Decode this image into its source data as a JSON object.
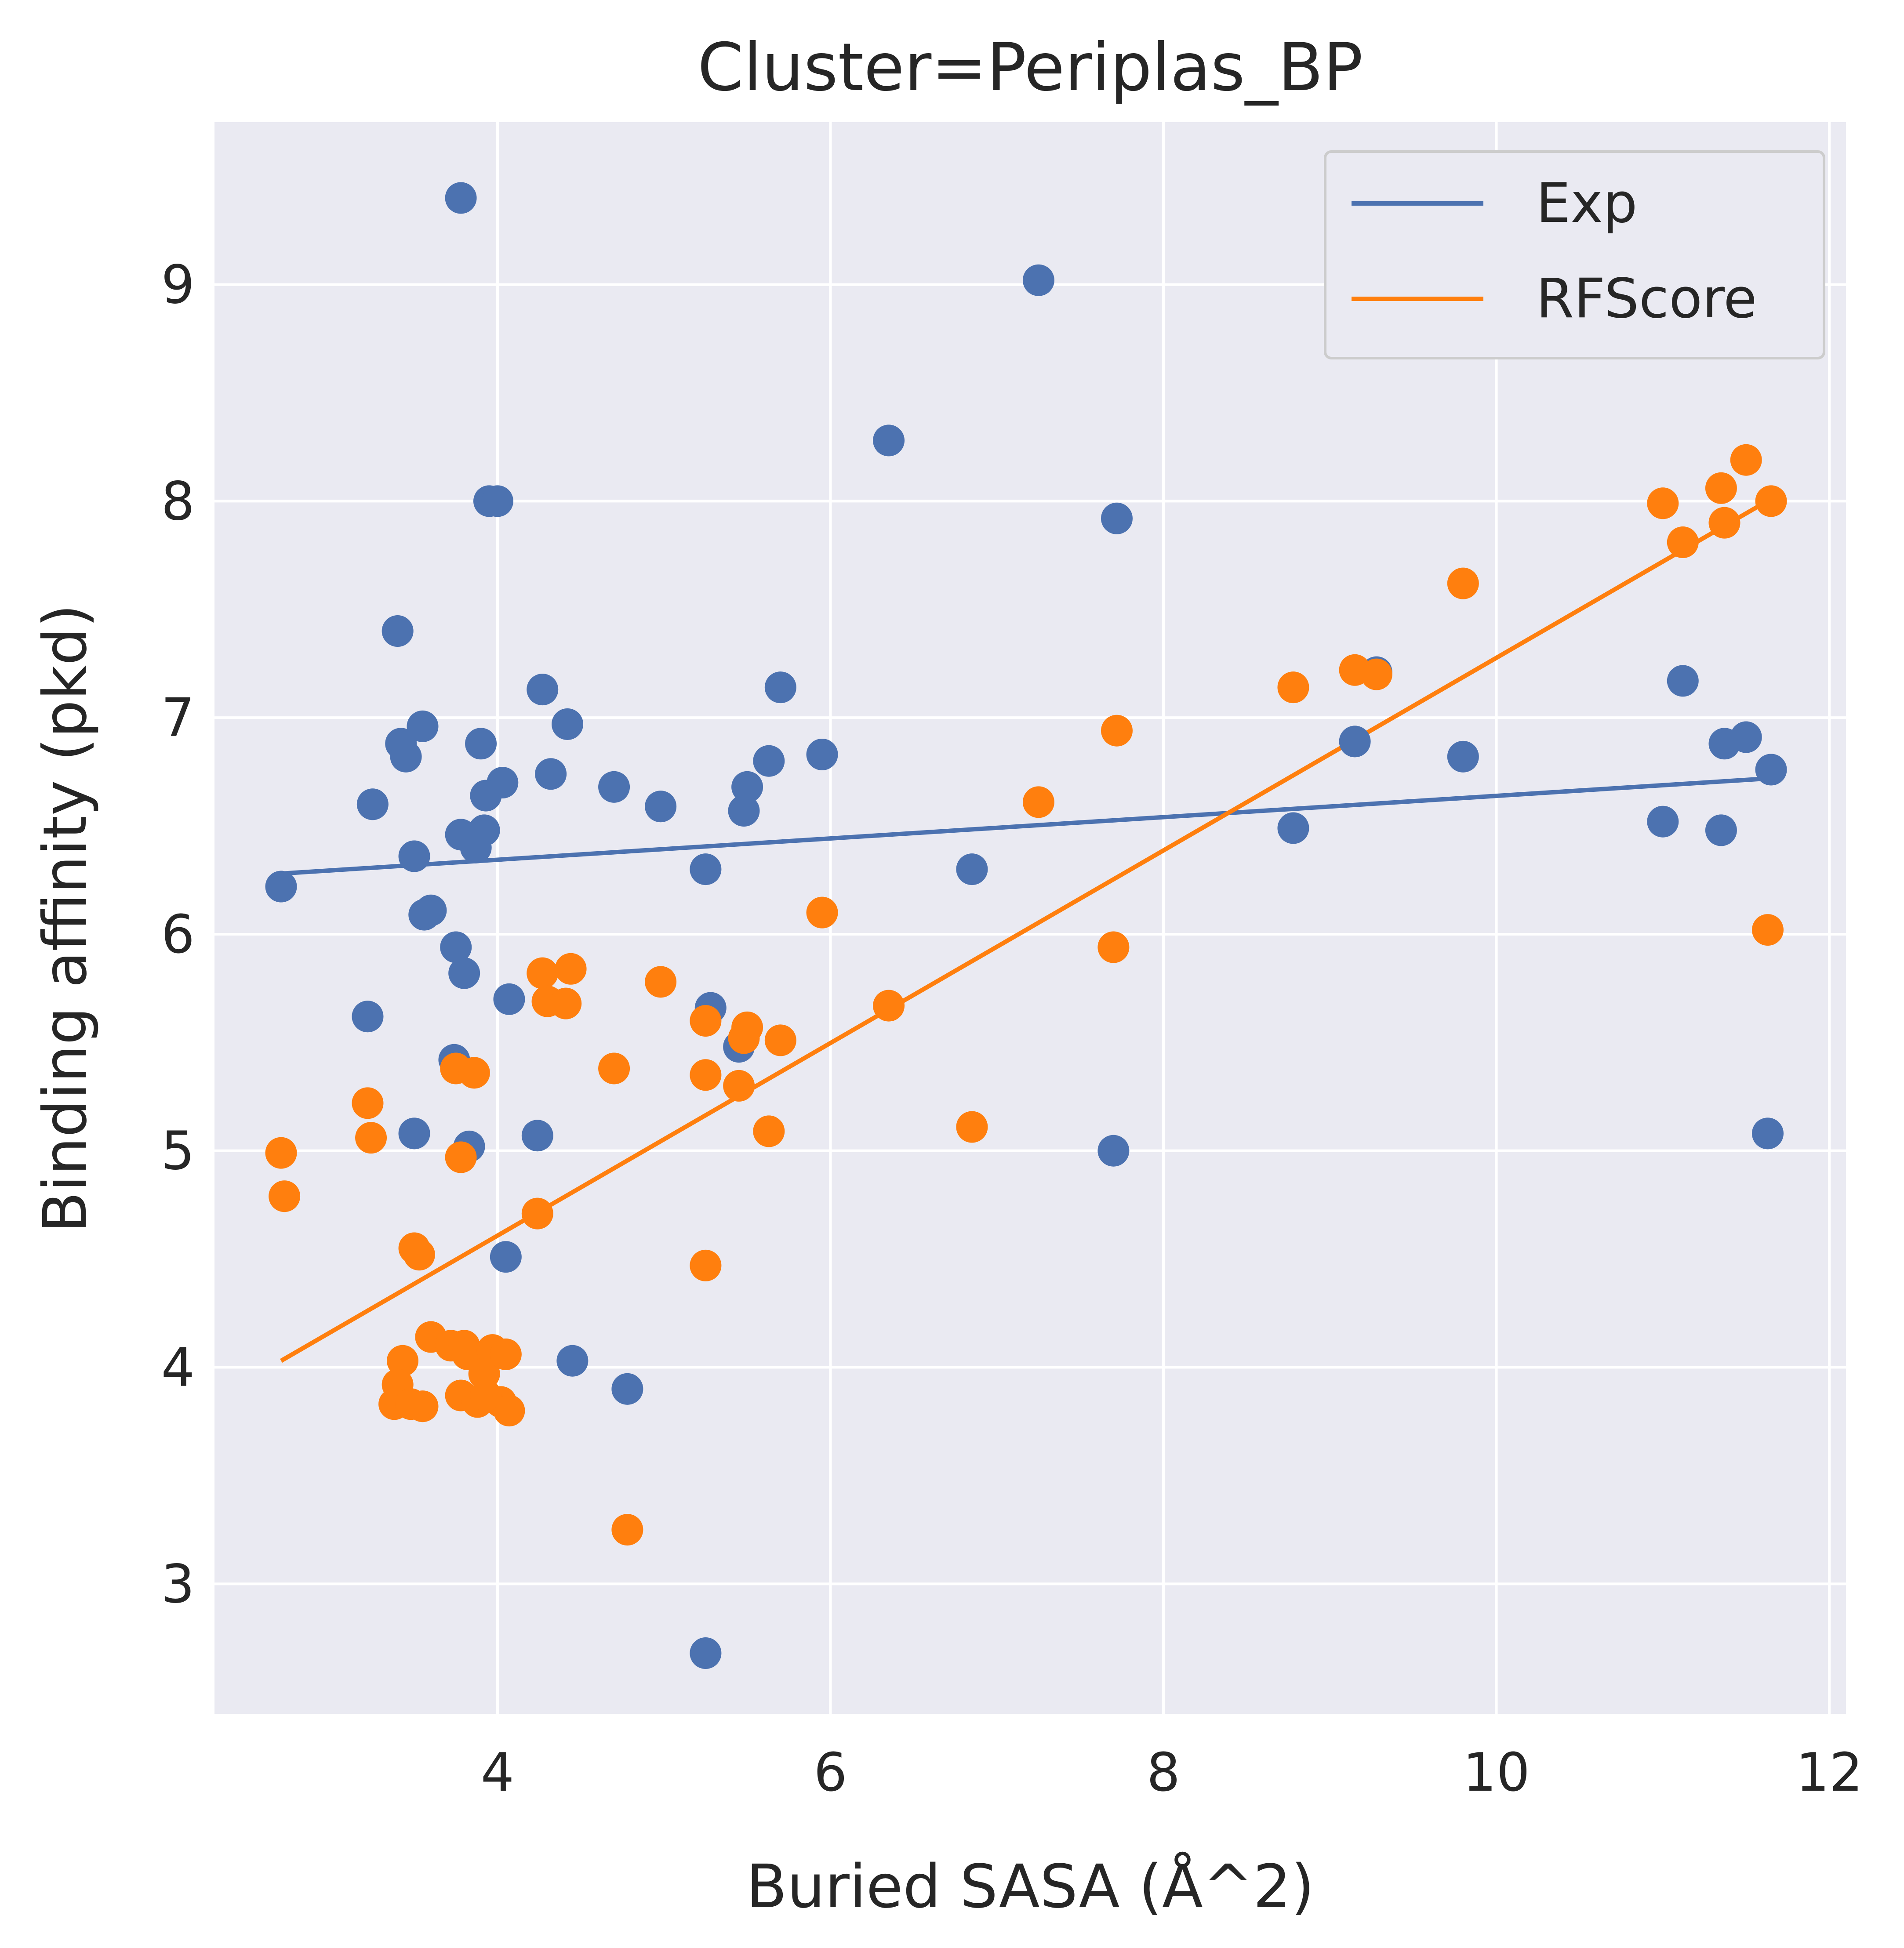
{
  "chart_data": {
    "type": "scatter",
    "title": "Cluster=Periplas_BP",
    "xlabel": "Buried SASA (Å^2)",
    "ylabel": "Binding affinity (pkd)",
    "xlim": [
      2.3,
      12.1
    ],
    "ylim": [
      2.4,
      9.75
    ],
    "xticks": [
      4,
      6,
      8,
      10,
      12
    ],
    "yticks": [
      3,
      4,
      5,
      6,
      7,
      8,
      9
    ],
    "grid": true,
    "legend_position": "upper-right",
    "colors": {
      "background": "#eaeaf2",
      "grid": "#ffffff",
      "Exp": "#4c72b0",
      "RFScore": "#ff7f0e"
    },
    "series": [
      {
        "name": "Exp",
        "color": "#4c72b0",
        "points": [
          [
            2.7,
            6.22
          ],
          [
            3.78,
            9.4
          ],
          [
            7.25,
            9.02
          ],
          [
            6.35,
            8.28
          ],
          [
            3.95,
            8.0
          ],
          [
            4.0,
            8.0
          ],
          [
            7.72,
            7.92
          ],
          [
            3.4,
            7.4
          ],
          [
            4.27,
            7.13
          ],
          [
            5.7,
            7.14
          ],
          [
            3.42,
            6.88
          ],
          [
            3.55,
            6.96
          ],
          [
            3.45,
            6.82
          ],
          [
            3.9,
            6.88
          ],
          [
            4.42,
            6.97
          ],
          [
            4.32,
            6.74
          ],
          [
            4.03,
            6.7
          ],
          [
            3.93,
            6.64
          ],
          [
            4.7,
            6.68
          ],
          [
            4.98,
            6.59
          ],
          [
            3.25,
            6.6
          ],
          [
            5.95,
            6.83
          ],
          [
            5.63,
            6.8
          ],
          [
            5.5,
            6.68
          ],
          [
            5.48,
            6.57
          ],
          [
            3.78,
            6.46
          ],
          [
            3.92,
            6.48
          ],
          [
            3.87,
            6.4
          ],
          [
            3.5,
            6.36
          ],
          [
            5.25,
            6.3
          ],
          [
            6.85,
            6.3
          ],
          [
            3.6,
            6.11
          ],
          [
            3.56,
            6.09
          ],
          [
            3.75,
            5.94
          ],
          [
            3.8,
            5.82
          ],
          [
            4.07,
            5.7
          ],
          [
            3.22,
            5.62
          ],
          [
            5.28,
            5.66
          ],
          [
            5.45,
            5.48
          ],
          [
            3.74,
            5.42
          ],
          [
            3.5,
            5.08
          ],
          [
            3.83,
            5.02
          ],
          [
            4.24,
            5.07
          ],
          [
            7.7,
            5.0
          ],
          [
            4.05,
            4.51
          ],
          [
            4.45,
            4.03
          ],
          [
            4.78,
            3.9
          ],
          [
            5.25,
            2.68
          ],
          [
            8.78,
            6.49
          ],
          [
            9.15,
            6.89
          ],
          [
            9.28,
            7.21
          ],
          [
            9.8,
            6.82
          ],
          [
            11.0,
            6.52
          ],
          [
            11.12,
            7.17
          ],
          [
            11.35,
            6.48
          ],
          [
            11.37,
            6.88
          ],
          [
            11.5,
            6.91
          ],
          [
            11.65,
            6.76
          ],
          [
            11.63,
            5.08
          ]
        ],
        "fit": [
          [
            2.7,
            6.28
          ],
          [
            11.65,
            6.72
          ]
        ]
      },
      {
        "name": "RFScore",
        "color": "#ff7f0e",
        "points": [
          [
            2.7,
            4.99
          ],
          [
            2.72,
            4.79
          ],
          [
            3.22,
            5.22
          ],
          [
            3.24,
            5.06
          ],
          [
            3.5,
            4.55
          ],
          [
            3.53,
            4.52
          ],
          [
            3.6,
            4.14
          ],
          [
            3.43,
            4.03
          ],
          [
            3.4,
            3.92
          ],
          [
            3.38,
            3.83
          ],
          [
            3.48,
            3.83
          ],
          [
            3.55,
            3.82
          ],
          [
            3.72,
            4.1
          ],
          [
            3.8,
            4.1
          ],
          [
            3.82,
            4.06
          ],
          [
            3.78,
            3.87
          ],
          [
            3.88,
            3.84
          ],
          [
            3.92,
            3.97
          ],
          [
            3.97,
            4.08
          ],
          [
            4.05,
            4.06
          ],
          [
            4.02,
            3.84
          ],
          [
            4.07,
            3.8
          ],
          [
            3.93,
            3.87
          ],
          [
            3.75,
            5.38
          ],
          [
            3.86,
            5.36
          ],
          [
            3.78,
            4.97
          ],
          [
            4.27,
            5.82
          ],
          [
            4.44,
            5.84
          ],
          [
            4.3,
            5.69
          ],
          [
            4.41,
            5.68
          ],
          [
            4.98,
            5.78
          ],
          [
            4.7,
            5.38
          ],
          [
            5.25,
            5.6
          ],
          [
            5.5,
            5.57
          ],
          [
            5.48,
            5.52
          ],
          [
            5.7,
            5.51
          ],
          [
            5.25,
            5.35
          ],
          [
            5.45,
            5.3
          ],
          [
            5.63,
            5.09
          ],
          [
            4.24,
            4.71
          ],
          [
            5.25,
            4.47
          ],
          [
            4.78,
            3.25
          ],
          [
            5.95,
            6.1
          ],
          [
            6.35,
            5.67
          ],
          [
            6.85,
            5.11
          ],
          [
            7.25,
            6.61
          ],
          [
            7.72,
            6.94
          ],
          [
            7.7,
            5.94
          ],
          [
            8.78,
            7.14
          ],
          [
            9.15,
            7.22
          ],
          [
            9.28,
            7.2
          ],
          [
            9.8,
            7.62
          ],
          [
            11.0,
            7.99
          ],
          [
            11.12,
            7.81
          ],
          [
            11.35,
            8.06
          ],
          [
            11.37,
            7.9
          ],
          [
            11.5,
            8.19
          ],
          [
            11.65,
            8.0
          ],
          [
            11.63,
            6.02
          ]
        ],
        "fit": [
          [
            2.7,
            4.03
          ],
          [
            11.65,
            8.01
          ]
        ]
      }
    ]
  }
}
